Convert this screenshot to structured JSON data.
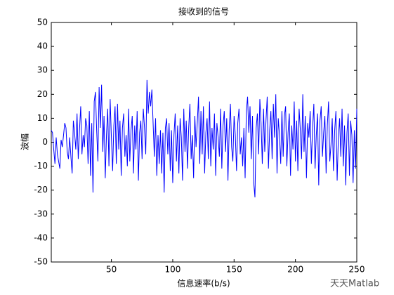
{
  "chart_data": {
    "type": "line",
    "title": "接收到的信号",
    "xlabel": "信息速率(b/s)",
    "ylabel": "波幅",
    "watermark": "天天Matlab",
    "color": "#0000ff",
    "x": [
      1,
      2,
      3,
      4,
      5,
      6,
      7,
      8,
      9,
      10,
      11,
      12,
      13,
      14,
      15,
      16,
      17,
      18,
      19,
      20,
      21,
      22,
      23,
      24,
      25,
      26,
      27,
      28,
      29,
      30,
      31,
      32,
      33,
      34,
      35,
      36,
      37,
      38,
      39,
      40,
      41,
      42,
      43,
      44,
      45,
      46,
      47,
      48,
      49,
      50,
      51,
      52,
      53,
      54,
      55,
      56,
      57,
      58,
      59,
      60,
      61,
      62,
      63,
      64,
      65,
      66,
      67,
      68,
      69,
      70,
      71,
      72,
      73,
      74,
      75,
      76,
      77,
      78,
      79,
      80,
      81,
      82,
      83,
      84,
      85,
      86,
      87,
      88,
      89,
      90,
      91,
      92,
      93,
      94,
      95,
      96,
      97,
      98,
      99,
      100,
      101,
      102,
      103,
      104,
      105,
      106,
      107,
      108,
      109,
      110,
      111,
      112,
      113,
      114,
      115,
      116,
      117,
      118,
      119,
      120,
      121,
      122,
      123,
      124,
      125,
      126,
      127,
      128,
      129,
      130,
      131,
      132,
      133,
      134,
      135,
      136,
      137,
      138,
      139,
      140,
      141,
      142,
      143,
      144,
      145,
      146,
      147,
      148,
      149,
      150,
      151,
      152,
      153,
      154,
      155,
      156,
      157,
      158,
      159,
      160,
      161,
      162,
      163,
      164,
      165,
      166,
      167,
      168,
      169,
      170,
      171,
      172,
      173,
      174,
      175,
      176,
      177,
      178,
      179,
      180,
      181,
      182,
      183,
      184,
      185,
      186,
      187,
      188,
      189,
      190,
      191,
      192,
      193,
      194,
      195,
      196,
      197,
      198,
      199,
      200,
      201,
      202,
      203,
      204,
      205,
      206,
      207,
      208,
      209,
      210,
      211,
      212,
      213,
      214,
      215,
      216,
      217,
      218,
      219,
      220,
      221,
      222,
      223,
      224,
      225,
      226,
      227,
      228,
      229,
      230,
      231,
      232,
      233,
      234,
      235,
      236,
      237,
      238,
      239,
      240,
      241,
      242,
      243,
      244,
      245,
      246,
      247,
      248,
      249,
      250
    ],
    "values": [
      5,
      4,
      -3,
      -9,
      2,
      -5,
      -8,
      -11,
      1,
      -2,
      3,
      8,
      6,
      -4,
      -7,
      2,
      -6,
      -13,
      9,
      4,
      -3,
      12,
      -7,
      5,
      15,
      -5,
      3,
      -2,
      10,
      7,
      -9,
      13,
      -14,
      8,
      -21,
      17,
      21,
      5,
      -8,
      23,
      6,
      24,
      -4,
      11,
      -15,
      3,
      14,
      -10,
      18,
      2,
      -12,
      7,
      15,
      -9,
      16,
      -3,
      9,
      -14,
      6,
      12,
      -6,
      3,
      -10,
      14,
      -8,
      5,
      11,
      -13,
      7,
      -3,
      13,
      -16,
      4,
      9,
      -7,
      14,
      6,
      -5,
      26,
      12,
      21,
      15,
      22,
      8,
      -6,
      10,
      -14,
      3,
      -9,
      5,
      -13,
      4,
      -21,
      6,
      10,
      -5,
      8,
      -12,
      5,
      -17,
      3,
      12,
      -8,
      7,
      -13,
      10,
      2,
      -16,
      14,
      -4,
      9,
      -11,
      6,
      16,
      -7,
      3,
      -15,
      11,
      -2,
      8,
      19,
      -9,
      13,
      -5,
      15,
      -13,
      4,
      10,
      -7,
      17,
      -10,
      6,
      -3,
      12,
      -14,
      8,
      2,
      -6,
      14,
      -11,
      7,
      13,
      -4,
      10,
      -16,
      5,
      16,
      -2,
      -8,
      11,
      3,
      -12,
      8,
      14,
      -5,
      2,
      -10,
      6,
      -15,
      13,
      19,
      4,
      15,
      -7,
      11,
      -17,
      -23,
      6,
      12,
      -5,
      18,
      8,
      -9,
      14,
      -4,
      9,
      19,
      -11,
      5,
      13,
      -7,
      16,
      2,
      20,
      -13,
      10,
      3,
      -9,
      13,
      -6,
      11,
      15,
      -10,
      4,
      12,
      -14,
      7,
      -3,
      17,
      -8,
      9,
      -12,
      14,
      5,
      -7,
      20,
      -4,
      11,
      -15,
      8,
      2,
      13,
      -9,
      6,
      16,
      -11,
      3,
      12,
      -18,
      9,
      15,
      -6,
      4,
      11,
      -13,
      7,
      17,
      -8,
      -1,
      10,
      -12,
      5,
      13,
      -16,
      2,
      10,
      -6,
      14,
      -10,
      7,
      -18,
      4,
      12,
      -14,
      9,
      3,
      -17,
      5,
      -11,
      14
    ],
    "xlim": [
      1,
      250
    ],
    "xticks": [
      50,
      100,
      150,
      200,
      250
    ],
    "ylim": [
      -50,
      50
    ],
    "yticks": [
      -50,
      -40,
      -30,
      -20,
      -10,
      0,
      10,
      20,
      30,
      40,
      50
    ]
  }
}
